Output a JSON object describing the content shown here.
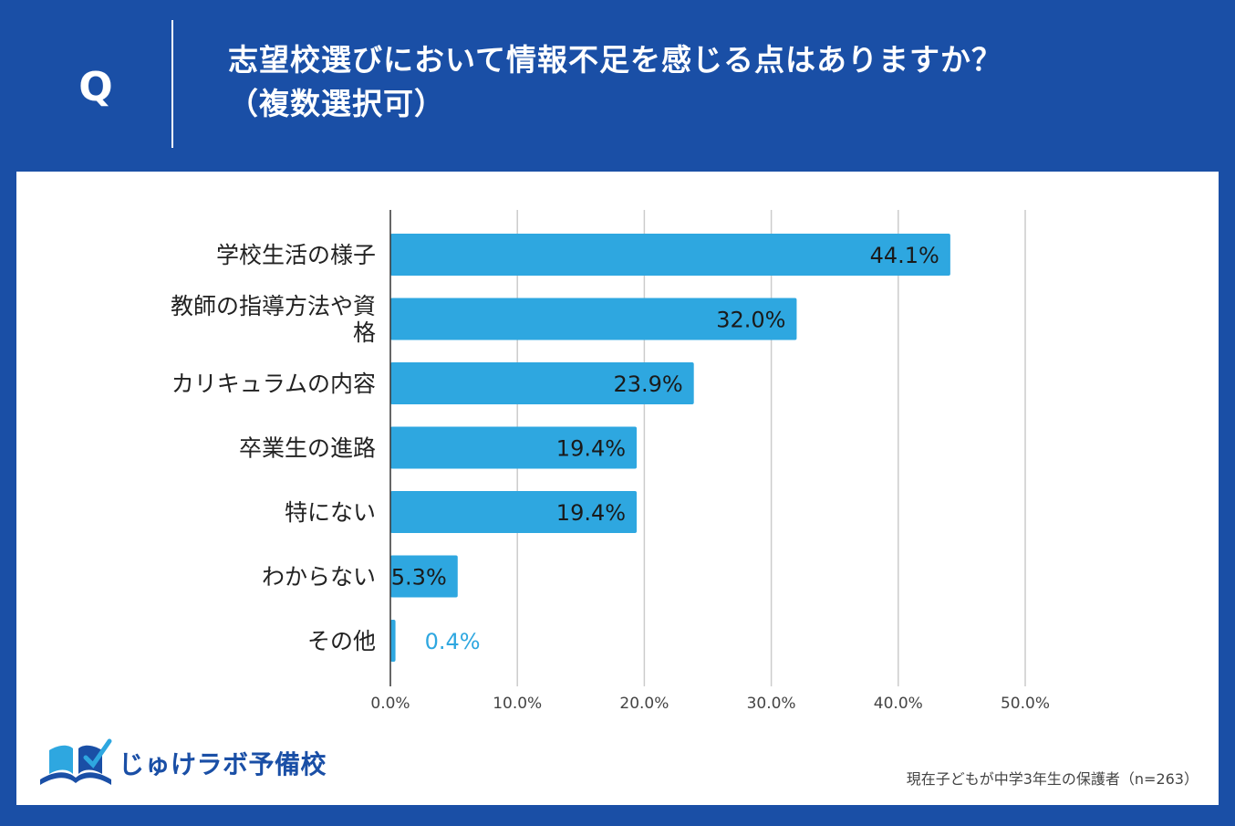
{
  "header": {
    "q_mark": "Q",
    "title_line1": "志望校選びにおいて情報不足を感じる点はありますか？",
    "title_line2": "（複数選択可）"
  },
  "footer": {
    "logo_text": "じゅけラボ予備校",
    "source_note": "現在子どもが中学3年生の保護者（n=263）"
  },
  "colors": {
    "background": "#1a4fa6",
    "bar": "#2ea7e0",
    "bar_label_inside": "#1a1a1a",
    "bar_label_outside": "#2ea7e0",
    "grid": "#cccccc"
  },
  "chart_data": {
    "type": "bar",
    "orientation": "horizontal",
    "categories": [
      [
        "学校生活の様子"
      ],
      [
        "教師の指導方法や資",
        "格"
      ],
      [
        "カリキュラムの内容"
      ],
      [
        "卒業生の進路"
      ],
      [
        "特にない"
      ],
      [
        "わからない"
      ],
      [
        "その他"
      ]
    ],
    "values": [
      44.1,
      32.0,
      23.9,
      19.4,
      19.4,
      5.3,
      0.4
    ],
    "value_labels": [
      "44.1%",
      "32.0%",
      "23.9%",
      "19.4%",
      "19.4%",
      "5.3%",
      "0.4%"
    ],
    "xlim": [
      0,
      50
    ],
    "x_ticks": [
      0,
      10,
      20,
      30,
      40,
      50
    ],
    "x_tick_labels": [
      "0.0%",
      "10.0%",
      "20.0%",
      "30.0%",
      "40.0%",
      "50.0%"
    ],
    "grid": true,
    "legend": "none"
  }
}
